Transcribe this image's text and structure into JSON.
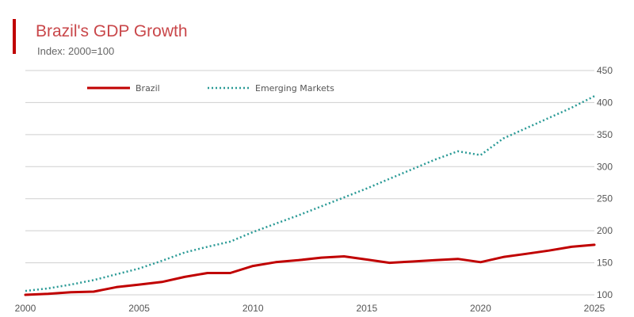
{
  "header": {
    "title": "Brazil's GDP Growth",
    "subtitle": "Index: 2000=100"
  },
  "colors": {
    "accent": "#c00000",
    "title": "#c9474a",
    "brazil": "#c00000",
    "emerging": "#2a9a96",
    "grid": "#cfcfcf"
  },
  "chart_data": {
    "type": "line",
    "title": "Brazil's GDP Growth",
    "subtitle": "Index: 2000=100",
    "xlabel": "",
    "ylabel": "",
    "x": [
      2000,
      2001,
      2002,
      2003,
      2004,
      2005,
      2006,
      2007,
      2008,
      2009,
      2010,
      2011,
      2012,
      2013,
      2014,
      2015,
      2016,
      2017,
      2018,
      2019,
      2020,
      2021,
      2022,
      2023,
      2024,
      2025
    ],
    "series": [
      {
        "name": "Brazil",
        "style": "solid",
        "values": [
          100,
          101.5,
          104,
          105,
          112,
          116,
          120,
          128,
          134,
          134,
          145,
          151,
          154,
          158,
          160,
          155,
          150,
          152,
          154,
          156,
          151,
          159,
          164,
          169,
          175,
          178
        ]
      },
      {
        "name": "Emerging Markets",
        "style": "dotted",
        "values": [
          106,
          110,
          116,
          123,
          132,
          141,
          153,
          166,
          175,
          183,
          198,
          211,
          224,
          238,
          252,
          266,
          281,
          296,
          311,
          324,
          318,
          344,
          360,
          376,
          392,
          410
        ]
      }
    ],
    "xlim": [
      2000,
      2025
    ],
    "ylim": [
      100,
      450
    ],
    "xticks": [
      2000,
      2005,
      2010,
      2015,
      2020,
      2025
    ],
    "yticks": [
      100,
      150,
      200,
      250,
      300,
      350,
      400,
      450
    ],
    "y_axis_side": "right",
    "grid": true,
    "legend_position": "top-left"
  }
}
